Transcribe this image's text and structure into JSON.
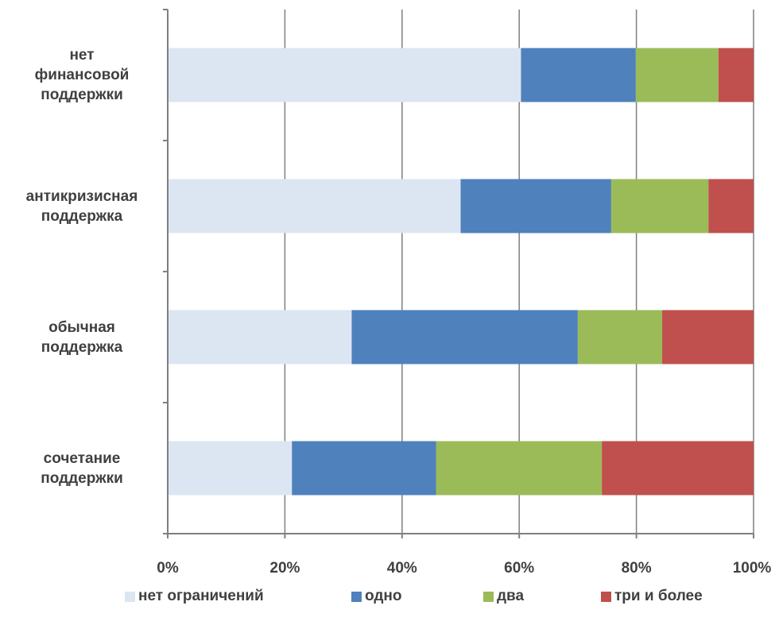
{
  "chart_data": {
    "type": "bar",
    "orientation": "horizontal",
    "stacked": "percent",
    "categories": [
      "нет финансовой поддержки",
      "антикризисная поддержка",
      "обычная поддержка",
      "сочетание поддержки"
    ],
    "category_labels": [
      "нет\nфинансовой\nподдержки",
      "антикризисная\nподдержка",
      "обычная\nподдержка",
      "сочетание\nподдержки"
    ],
    "series": [
      {
        "name": "нет ограничений",
        "color": "#dce6f2",
        "values": [
          60.3,
          50.0,
          31.4,
          21.2
        ]
      },
      {
        "name": "одно",
        "color": "#4f81bd",
        "values": [
          19.6,
          25.7,
          38.6,
          24.6
        ]
      },
      {
        "name": "два",
        "color": "#9bbb59",
        "values": [
          14.1,
          16.6,
          14.4,
          28.3
        ]
      },
      {
        "name": "три и более",
        "color": "#c0504d",
        "values": [
          6.0,
          7.7,
          15.6,
          25.9
        ]
      }
    ],
    "x_ticks": [
      "0%",
      "20%",
      "40%",
      "60%",
      "80%",
      "100%"
    ],
    "xlim": [
      0,
      100
    ],
    "grid": true,
    "legend_position": "bottom"
  }
}
